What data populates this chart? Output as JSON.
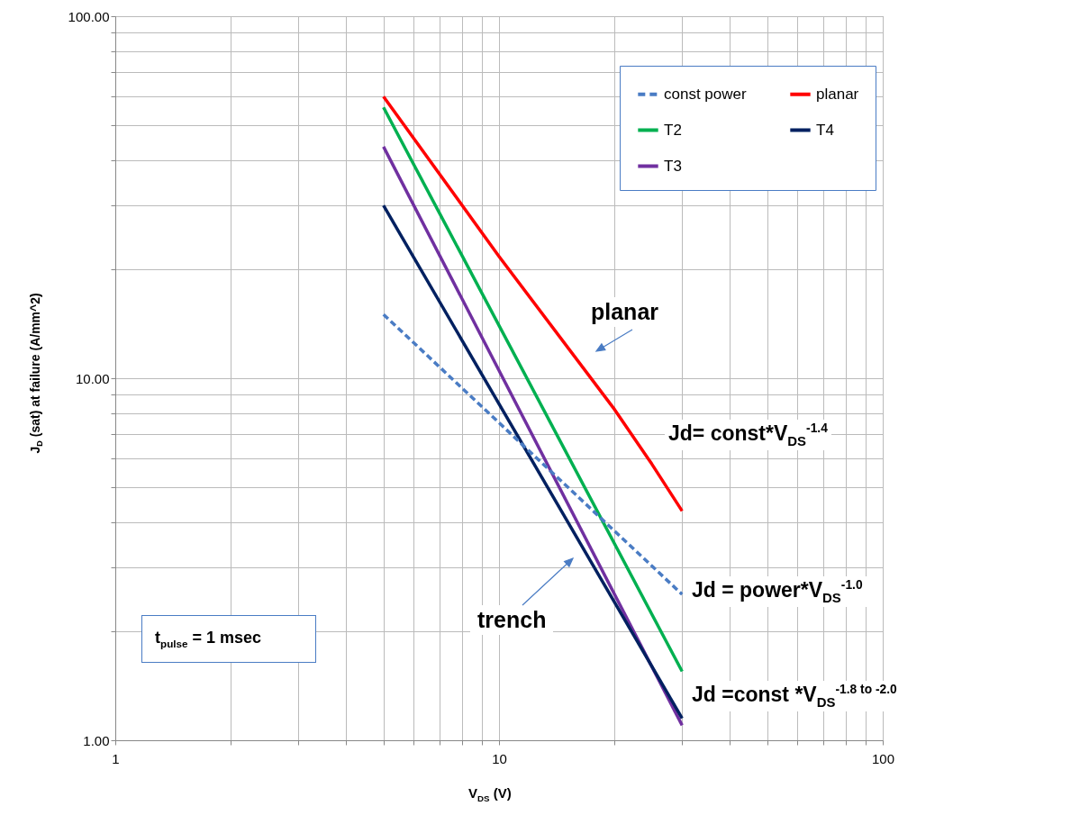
{
  "chart_data": {
    "type": "line",
    "xlabel": "V$_{DS}$ (V)",
    "ylabel": "J$_{D}$ (sat) at failure   (A/mm^2)",
    "log": "xy",
    "grid": true,
    "legend": "top right",
    "marker": "none",
    "xlim": [
      1,
      100
    ],
    "ylim": [
      1,
      100
    ],
    "xticks": [
      1,
      {
        "value": 2,
        "label": null
      },
      {
        "value": 3,
        "label": null
      },
      {
        "value": 4,
        "label": null
      },
      {
        "value": 5,
        "label": null
      },
      {
        "value": 6,
        "label": null
      },
      {
        "value": 7,
        "label": null
      },
      {
        "value": 8,
        "label": null
      },
      {
        "value": 9,
        "label": null
      },
      10,
      {
        "value": 20,
        "label": null
      },
      {
        "value": 30,
        "label": null
      },
      {
        "value": 40,
        "label": null
      },
      {
        "value": 50,
        "label": null
      },
      {
        "value": 60,
        "label": null
      },
      {
        "value": 70,
        "label": null
      },
      {
        "value": 80,
        "label": null
      },
      {
        "value": 90,
        "label": null
      },
      100
    ],
    "yticks": [
      {
        "value": 1,
        "label": "1.00"
      },
      {
        "value": 2,
        "label": null
      },
      {
        "value": 3,
        "label": null
      },
      {
        "value": 4,
        "label": null
      },
      {
        "value": 5,
        "label": null
      },
      {
        "value": 6,
        "label": null
      },
      {
        "value": 7,
        "label": null
      },
      {
        "value": 8,
        "label": null
      },
      {
        "value": 9,
        "label": null
      },
      {
        "value": 10,
        "label": "10.00"
      },
      {
        "value": 20,
        "label": null
      },
      {
        "value": 30,
        "label": null
      },
      {
        "value": 40,
        "label": null
      },
      {
        "value": 50,
        "label": null
      },
      {
        "value": 60,
        "label": null
      },
      {
        "value": 70,
        "label": null
      },
      {
        "value": 80,
        "label": null
      },
      {
        "value": 90,
        "label": null
      },
      {
        "value": 100,
        "label": "100.00"
      }
    ],
    "series": [
      {
        "name": "const power",
        "color": "#4a7cc4",
        "line_style": "dashed",
        "x": [
          5,
          30
        ],
        "values": [
          15,
          2.53
        ]
      },
      {
        "name": "T2",
        "color": "#00b050",
        "x": [
          5,
          30
        ],
        "values": [
          56,
          1.55
        ]
      },
      {
        "name": "T3",
        "color": "#7030a0",
        "x": [
          5,
          30
        ],
        "values": [
          43.6,
          1.1
        ]
      },
      {
        "name": "planar",
        "color": "#ff0000",
        "x": [
          5,
          10,
          20,
          25,
          30
        ],
        "values": [
          60,
          21.7,
          8.2,
          5.8,
          4.3
        ]
      },
      {
        "name": "T4",
        "color": "#002060",
        "x": [
          5,
          30
        ],
        "values": [
          30,
          1.15
        ]
      }
    ],
    "annotations": [
      "planar",
      "trench",
      "Jd= const*V$_{DS}$$^{-1.4}$",
      "Jd = power*V$_{DS}$$^{-1.0}$",
      "Jd =const *V$_{DS}$$^{-1.8 to -2.0}$",
      "t$_{pulse}$ = 1 msec"
    ]
  }
}
